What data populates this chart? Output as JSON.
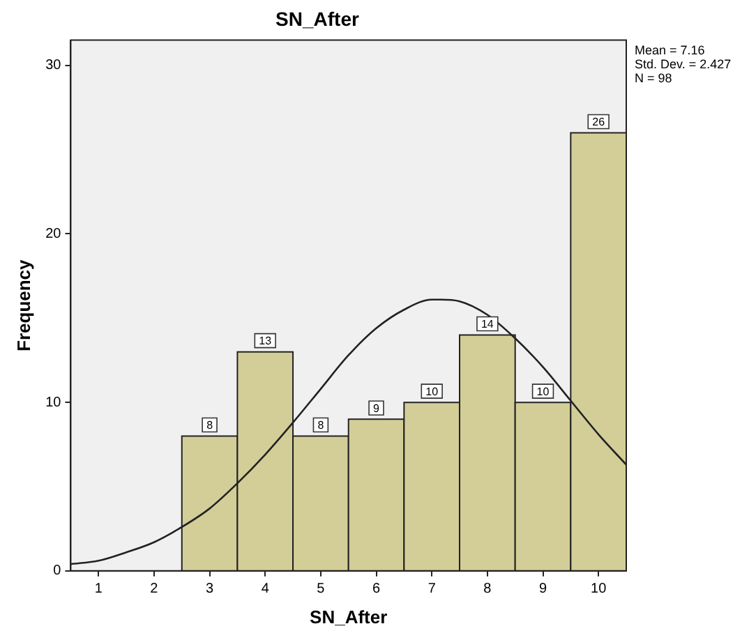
{
  "chart_data": {
    "type": "histogram",
    "title": "SN_After",
    "xlabel": "SN_After",
    "ylabel": "Frequency",
    "bins": [
      2.5,
      3.5,
      4.5,
      5.5,
      6.5,
      7.5,
      8.5,
      9.5,
      10.5
    ],
    "values": [
      8,
      13,
      8,
      9,
      10,
      14,
      10,
      26
    ],
    "color": "#d3ce98",
    "value_labels": [
      "8",
      "13",
      "8",
      "9",
      "10",
      "14",
      "10",
      "26"
    ],
    "xlim": [
      0.5,
      10.5
    ],
    "xticks": [
      1,
      2,
      3,
      4,
      5,
      6,
      7,
      8,
      9,
      10
    ],
    "ylim": [
      0,
      31.5
    ],
    "yticks": [
      0,
      10,
      20,
      30
    ],
    "grid": false,
    "legend": false,
    "annotations": [
      "Mean = 7.16",
      "Std. Dev. = 2.427",
      "N = 98"
    ],
    "series": [
      {
        "type": "line",
        "color": "#222222",
        "x": [
          0.5,
          1,
          1.5,
          2,
          2.5,
          3,
          3.5,
          4,
          4.5,
          5,
          5.5,
          6,
          6.5,
          7,
          7.16,
          7.5,
          8,
          8.5,
          9,
          9.5,
          10,
          10.5
        ],
        "values": [
          0.4,
          0.6,
          1.1,
          1.7,
          2.6,
          3.7,
          5.2,
          6.9,
          8.8,
          10.8,
          12.8,
          14.4,
          15.5,
          16.1,
          16.1,
          16.0,
          15.2,
          13.8,
          12.1,
          10.1,
          8.1,
          6.3
        ]
      }
    ]
  }
}
